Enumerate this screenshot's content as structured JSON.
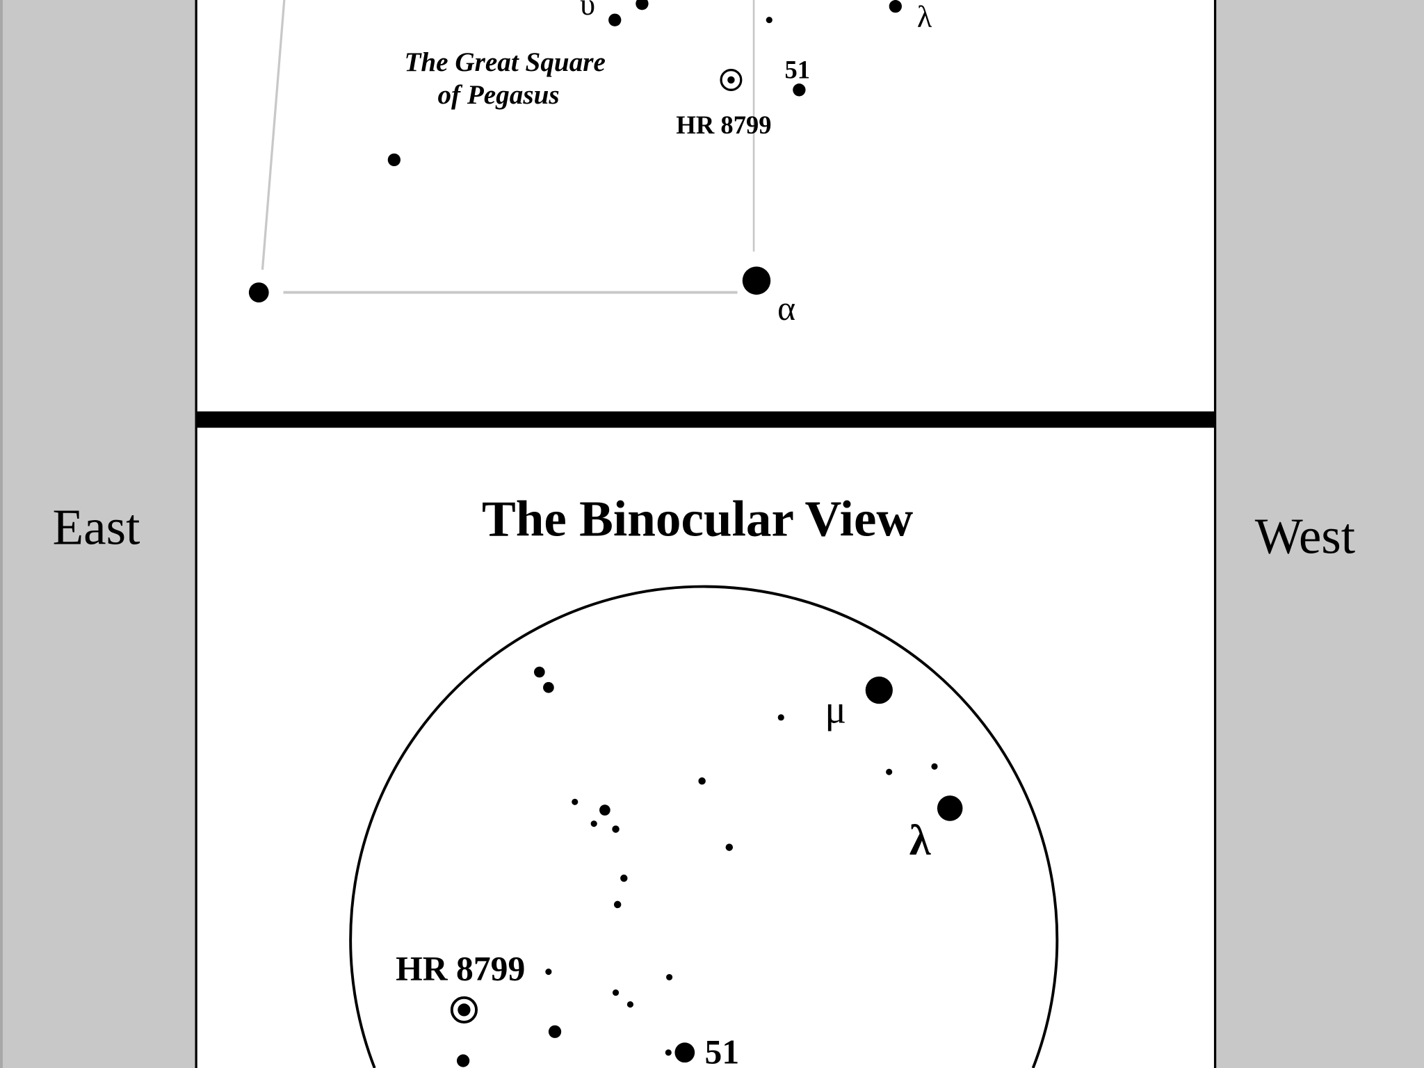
{
  "side_labels": {
    "left": "East",
    "right": "West"
  },
  "top_chart": {
    "asterism_label_line1": "The Great Square",
    "asterism_label_line2": "of Pegasus",
    "star_labels": {
      "upsilon": "υ",
      "lambda": "λ",
      "alpha": "α",
      "fifty_one": "51",
      "hr8799": "HR 8799"
    }
  },
  "binocular": {
    "title": "The Binocular View",
    "star_labels": {
      "mu": "μ",
      "lambda": "λ",
      "hr8799": "HR 8799",
      "fifty_one": "51"
    }
  },
  "colors": {
    "side_panel": "#c8c8c8",
    "asterism_line": "#c8c8c8",
    "ink": "#000000"
  }
}
